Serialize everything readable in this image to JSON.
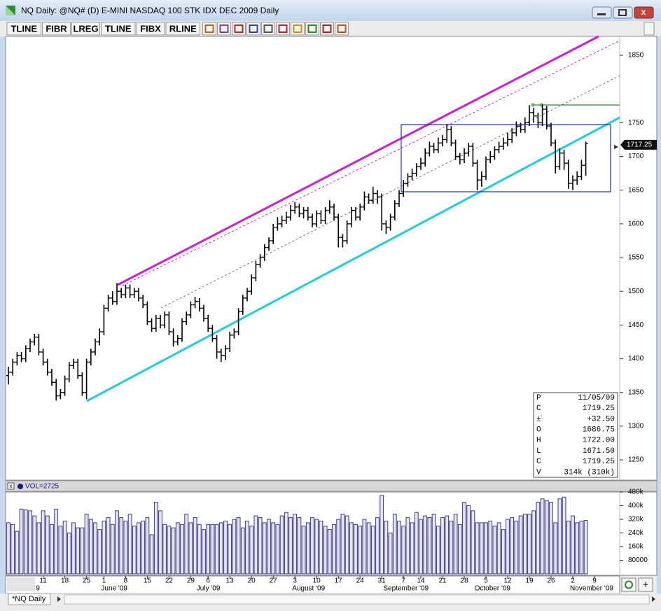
{
  "window": {
    "title": "NQ Daily: @NQ# (D) E-MINI NASDAQ 100 STK IDX DEC 2009 Daily",
    "volume_label": "VOL=2725",
    "tab": "*NQ Daily"
  },
  "toolbar": [
    "TLINE",
    "FIBR",
    "LREG",
    "TLINE",
    "FIBX",
    "RLINE"
  ],
  "data_box": [
    [
      "P",
      "11/05/09"
    ],
    [
      "C",
      "1719.25"
    ],
    [
      "±",
      "+32.50"
    ],
    [
      "O",
      "1686.75"
    ],
    [
      "H",
      "1722.00"
    ],
    [
      "L",
      "1671.50"
    ],
    [
      "C",
      "1719.25"
    ],
    [
      "V",
      "314k (310k)"
    ]
  ],
  "chart_data": [
    {
      "type": "ohlc",
      "color": "#000000",
      "last_price": 1717.25,
      "categories": [
        null,
        null,
        null,
        null,
        null,
        null,
        null,
        null,
        "11",
        null,
        null,
        null,
        null,
        "18",
        null,
        null,
        null,
        null,
        "25",
        null,
        null,
        null,
        "1",
        null,
        null,
        null,
        null,
        "8",
        null,
        null,
        null,
        null,
        "15",
        null,
        null,
        null,
        null,
        "22",
        null,
        null,
        null,
        null,
        "29",
        null,
        null,
        null,
        "6",
        null,
        null,
        null,
        null,
        "13",
        null,
        null,
        null,
        null,
        "20",
        null,
        null,
        null,
        null,
        "27",
        null,
        null,
        null,
        null,
        "3",
        null,
        null,
        null,
        null,
        "10",
        null,
        null,
        null,
        null,
        "17",
        null,
        null,
        null,
        null,
        "24",
        null,
        null,
        null,
        null,
        "31",
        null,
        null,
        null,
        null,
        "7",
        null,
        null,
        null,
        "14",
        null,
        null,
        null,
        null,
        "21",
        null,
        null,
        null,
        null,
        "28",
        null,
        null,
        null,
        null,
        "5",
        null,
        null,
        null,
        null,
        "12",
        null,
        null,
        null,
        null,
        "19",
        null,
        null,
        null,
        null,
        "26",
        null,
        null,
        null,
        null,
        "2",
        null,
        null,
        null,
        null,
        "9"
      ],
      "month_ticks": [
        {
          "value": 7,
          "label": "9"
        },
        {
          "value": 22,
          "label": "June '09"
        },
        {
          "value": 44,
          "label": "July '09"
        },
        {
          "value": 66,
          "label": "August '09"
        },
        {
          "value": 87,
          "label": "September '09"
        },
        {
          "value": 108,
          "label": "October '09"
        },
        {
          "value": 130,
          "label": "November '09"
        }
      ],
      "open": [
        1375,
        1380,
        1395,
        1405,
        1400,
        1415,
        1425,
        1432,
        1410,
        1395,
        1380,
        1365,
        1345,
        1350,
        1370,
        1390,
        1395,
        1375,
        1350,
        1395,
        1410,
        1425,
        1440,
        1475,
        1490,
        1485,
        1500,
        1495,
        1505,
        1495,
        1500,
        1490,
        1480,
        1455,
        1445,
        1460,
        1450,
        1465,
        1440,
        1425,
        1430,
        1455,
        1465,
        1480,
        1485,
        1475,
        1460,
        1445,
        1430,
        1410,
        1405,
        1415,
        1435,
        1440,
        1470,
        1490,
        1500,
        1520,
        1540,
        1550,
        1565,
        1575,
        1595,
        1600,
        1605,
        1610,
        1620,
        1625,
        1615,
        1620,
        1610,
        1600,
        1615,
        1605,
        1620,
        1625,
        1610,
        1580,
        1575,
        1600,
        1620,
        1610,
        1625,
        1640,
        1635,
        1645,
        1640,
        1600,
        1595,
        1610,
        1630,
        1645,
        1660,
        1670,
        1675,
        1685,
        1690,
        1705,
        1715,
        1710,
        1720,
        1725,
        1740,
        1720,
        1700,
        1695,
        1705,
        1715,
        1690,
        1665,
        1670,
        1695,
        1700,
        1710,
        1715,
        1720,
        1725,
        1735,
        1745,
        1740,
        1750,
        1765,
        1760,
        1750,
        1770,
        1745,
        1720,
        1685,
        1705,
        1690,
        1660,
        1665,
        1670,
        1686.75,
        null,
        null
      ],
      "high": [
        1388,
        1400,
        1410,
        1410,
        1420,
        1430,
        1437,
        1437,
        1415,
        1400,
        1385,
        1370,
        1355,
        1375,
        1395,
        1400,
        1400,
        1380,
        1400,
        1415,
        1430,
        1445,
        1480,
        1495,
        1500,
        1512,
        1505,
        1510,
        1510,
        1505,
        1505,
        1495,
        1485,
        1460,
        1465,
        1465,
        1470,
        1470,
        1445,
        1435,
        1460,
        1470,
        1485,
        1492,
        1490,
        1480,
        1465,
        1450,
        1435,
        1415,
        1420,
        1440,
        1445,
        1475,
        1495,
        1505,
        1525,
        1545,
        1555,
        1570,
        1580,
        1600,
        1610,
        1612,
        1618,
        1628,
        1632,
        1630,
        1625,
        1625,
        1615,
        1620,
        1620,
        1625,
        1635,
        1630,
        1615,
        1585,
        1605,
        1625,
        1625,
        1630,
        1648,
        1645,
        1655,
        1650,
        1645,
        1605,
        1615,
        1635,
        1650,
        1665,
        1675,
        1682,
        1690,
        1698,
        1712,
        1722,
        1720,
        1728,
        1732,
        1748,
        1745,
        1725,
        1705,
        1712,
        1720,
        1720,
        1695,
        1678,
        1700,
        1708,
        1715,
        1722,
        1728,
        1735,
        1742,
        1752,
        1750,
        1758,
        1776,
        1772,
        1765,
        1777,
        1775,
        1750,
        1725,
        1712,
        1710,
        1695,
        1672,
        1678,
        1695,
        1722,
        null,
        null
      ],
      "low": [
        1362,
        1375,
        1390,
        1395,
        1395,
        1410,
        1420,
        1405,
        1390,
        1375,
        1360,
        1338,
        1340,
        1345,
        1365,
        1385,
        1370,
        1345,
        1340,
        1390,
        1405,
        1420,
        1435,
        1470,
        1480,
        1480,
        1490,
        1490,
        1490,
        1490,
        1485,
        1475,
        1450,
        1440,
        1440,
        1445,
        1445,
        1435,
        1418,
        1420,
        1425,
        1450,
        1460,
        1475,
        1470,
        1455,
        1440,
        1425,
        1400,
        1395,
        1398,
        1410,
        1430,
        1435,
        1465,
        1485,
        1495,
        1515,
        1535,
        1545,
        1560,
        1570,
        1590,
        1595,
        1600,
        1605,
        1615,
        1610,
        1608,
        1605,
        1595,
        1595,
        1600,
        1600,
        1615,
        1605,
        1565,
        1565,
        1570,
        1595,
        1605,
        1605,
        1620,
        1630,
        1630,
        1630,
        1590,
        1585,
        1590,
        1605,
        1625,
        1640,
        1655,
        1665,
        1670,
        1680,
        1685,
        1700,
        1705,
        1705,
        1715,
        1720,
        1715,
        1695,
        1688,
        1690,
        1700,
        1685,
        1650,
        1655,
        1665,
        1690,
        1695,
        1705,
        1710,
        1715,
        1720,
        1730,
        1735,
        1735,
        1745,
        1750,
        1742,
        1745,
        1740,
        1715,
        1675,
        1680,
        1680,
        1652,
        1650,
        1658,
        1665,
        1671.5,
        null,
        null
      ],
      "close": [
        1380,
        1395,
        1405,
        1400,
        1415,
        1425,
        1432,
        1410,
        1395,
        1380,
        1365,
        1345,
        1350,
        1370,
        1390,
        1395,
        1375,
        1350,
        1395,
        1410,
        1425,
        1440,
        1475,
        1490,
        1485,
        1500,
        1495,
        1505,
        1495,
        1500,
        1490,
        1480,
        1455,
        1445,
        1460,
        1450,
        1465,
        1440,
        1425,
        1430,
        1455,
        1465,
        1480,
        1485,
        1475,
        1460,
        1445,
        1430,
        1410,
        1405,
        1415,
        1435,
        1440,
        1470,
        1490,
        1500,
        1520,
        1540,
        1550,
        1565,
        1575,
        1595,
        1600,
        1605,
        1610,
        1620,
        1625,
        1615,
        1620,
        1610,
        1600,
        1615,
        1605,
        1620,
        1625,
        1610,
        1580,
        1575,
        1600,
        1620,
        1610,
        1625,
        1640,
        1635,
        1645,
        1640,
        1600,
        1595,
        1610,
        1630,
        1645,
        1660,
        1670,
        1675,
        1685,
        1690,
        1705,
        1715,
        1710,
        1720,
        1725,
        1740,
        1720,
        1700,
        1695,
        1705,
        1715,
        1690,
        1665,
        1670,
        1695,
        1700,
        1710,
        1715,
        1720,
        1725,
        1735,
        1745,
        1740,
        1750,
        1765,
        1760,
        1750,
        1770,
        1745,
        1720,
        1685,
        1705,
        1690,
        1660,
        1665,
        1670,
        1686.75,
        1719.25,
        null,
        null
      ],
      "ylim": [
        1220,
        1878
      ],
      "yticks": [
        1250,
        1300,
        1350,
        1400,
        1450,
        1500,
        1550,
        1600,
        1650,
        1700,
        1750,
        1850
      ]
    },
    {
      "type": "bar",
      "color": "#3a3a86",
      "fill": "#e6e6f2",
      "values": [
        300000,
        290000,
        250000,
        380000,
        375000,
        370000,
        340000,
        300000,
        370000,
        340000,
        290000,
        380000,
        280000,
        310000,
        240000,
        300000,
        270000,
        270000,
        350000,
        320000,
        300000,
        260000,
        310000,
        330000,
        290000,
        370000,
        330000,
        310000,
        350000,
        280000,
        300000,
        310000,
        330000,
        230000,
        420000,
        370000,
        290000,
        280000,
        270000,
        300000,
        290000,
        350000,
        300000,
        330000,
        290000,
        260000,
        290000,
        290000,
        290000,
        300000,
        310000,
        290000,
        320000,
        330000,
        270000,
        310000,
        280000,
        340000,
        330000,
        300000,
        320000,
        300000,
        290000,
        340000,
        360000,
        330000,
        350000,
        330000,
        280000,
        300000,
        330000,
        320000,
        310000,
        280000,
        260000,
        290000,
        320000,
        350000,
        340000,
        300000,
        290000,
        280000,
        320000,
        300000,
        280000,
        330000,
        460000,
        310000,
        240000,
        350000,
        310000,
        280000,
        330000,
        300000,
        360000,
        320000,
        340000,
        330000,
        350000,
        280000,
        330000,
        340000,
        310000,
        350000,
        290000,
        420000,
        400000,
        370000,
        300000,
        300000,
        300000,
        310000,
        280000,
        300000,
        260000,
        320000,
        330000,
        310000,
        340000,
        350000,
        350000,
        370000,
        420000,
        440000,
        430000,
        420000,
        300000,
        440000,
        450000,
        310000,
        340000,
        300000,
        310000,
        314000,
        null,
        null
      ],
      "ylim": [
        0,
        480000
      ],
      "yticks": [
        {
          "value": 480000,
          "label": "480k"
        },
        {
          "value": 400000,
          "label": "400k"
        },
        {
          "value": 320000,
          "label": "320k"
        },
        {
          "value": 240000,
          "label": "240k"
        },
        {
          "value": 160000,
          "label": "160k"
        },
        80000
      ]
    }
  ]
}
